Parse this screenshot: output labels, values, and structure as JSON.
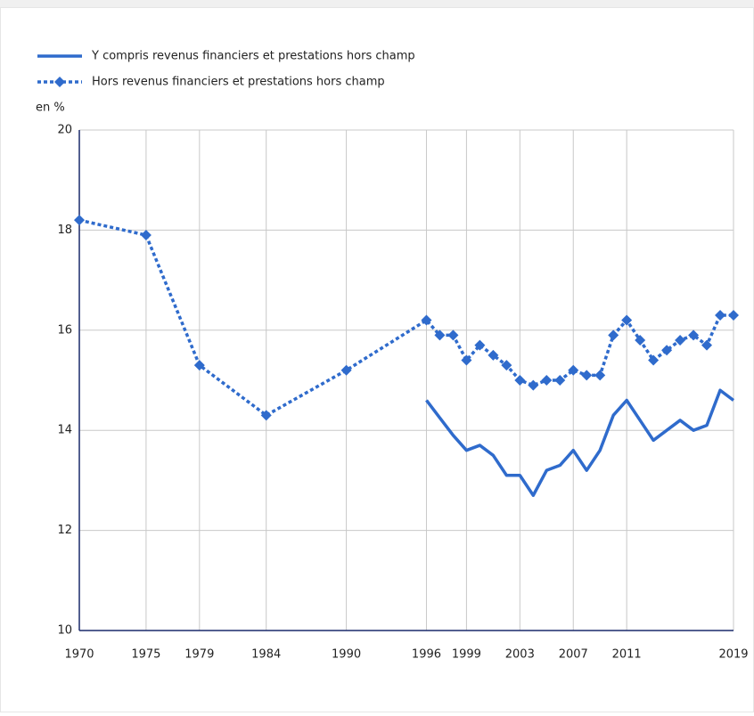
{
  "chart_data": {
    "type": "line",
    "y_label": "en %",
    "x": [
      1970,
      1975,
      1979,
      1984,
      1990,
      1996,
      1997,
      1998,
      1999,
      2000,
      2001,
      2002,
      2003,
      2004,
      2005,
      2006,
      2007,
      2008,
      2009,
      2010,
      2011,
      2012,
      2013,
      2014,
      2015,
      2016,
      2017,
      2018,
      2019
    ],
    "series": [
      {
        "name": "Y compris revenus financiers et prestations hors champ",
        "color": "#2f6bcc",
        "style": "solid",
        "values": [
          null,
          null,
          null,
          null,
          null,
          14.6,
          14.25,
          13.9,
          13.6,
          13.7,
          13.5,
          13.1,
          13.1,
          12.7,
          13.2,
          13.3,
          13.6,
          13.2,
          13.6,
          14.3,
          14.6,
          14.2,
          13.8,
          14.0,
          14.2,
          14.0,
          14.1,
          14.8,
          14.6
        ]
      },
      {
        "name": "Hors revenus financiers et prestations hors champ",
        "color": "#2f6bcc",
        "style": "dotted",
        "marker": "diamond",
        "values": [
          18.2,
          17.9,
          15.3,
          14.3,
          15.2,
          16.2,
          15.9,
          15.9,
          15.4,
          15.7,
          15.5,
          15.3,
          15.0,
          14.9,
          15.0,
          15.0,
          15.2,
          15.1,
          15.1,
          15.9,
          16.2,
          15.8,
          15.4,
          15.6,
          15.8,
          15.9,
          15.7,
          16.3,
          16.3
        ]
      }
    ],
    "xlim": [
      1970,
      2019
    ],
    "xticks": [
      1970,
      1975,
      1979,
      1984,
      1990,
      1996,
      1999,
      2003,
      2007,
      2011,
      2019
    ],
    "ylim": [
      10,
      20
    ],
    "yticks": [
      10,
      12,
      14,
      16,
      18,
      20
    ],
    "grid": true,
    "legend": "top-left"
  }
}
